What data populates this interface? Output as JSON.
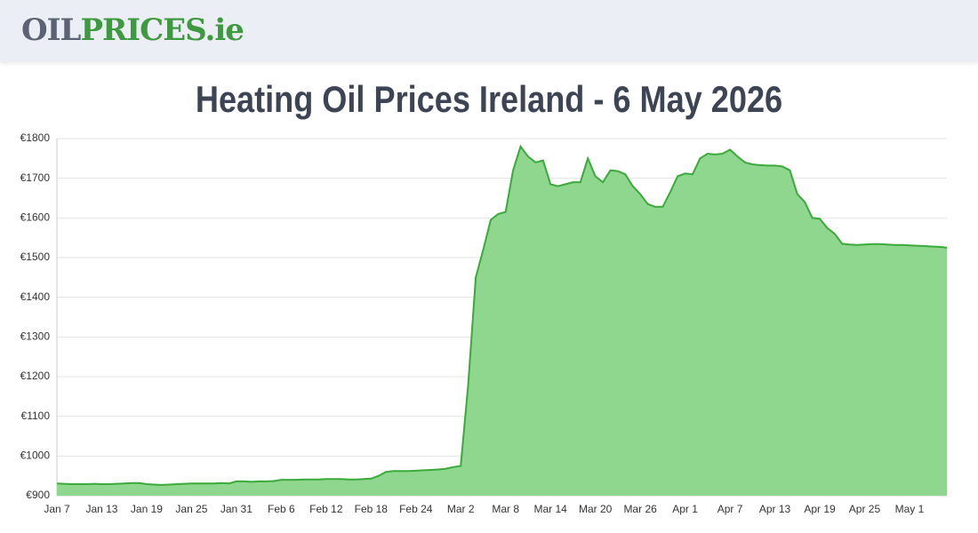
{
  "header": {
    "logo": [
      "OIL",
      "PRICES",
      ".ie"
    ]
  },
  "chart_data": {
    "type": "area",
    "title": "Heating Oil Prices Ireland - 6 May 2026",
    "categories": [
      "Jan 7",
      null,
      null,
      null,
      null,
      null,
      "Jan 13",
      null,
      null,
      null,
      null,
      null,
      "Jan 19",
      null,
      null,
      null,
      null,
      null,
      "Jan 25",
      null,
      null,
      null,
      null,
      null,
      "Jan 31",
      null,
      null,
      null,
      null,
      null,
      "Feb 6",
      null,
      null,
      null,
      null,
      null,
      "Feb 12",
      null,
      null,
      null,
      null,
      null,
      "Feb 18",
      null,
      null,
      null,
      null,
      null,
      "Feb 24",
      null,
      null,
      null,
      null,
      null,
      "Mar 2",
      null,
      null,
      null,
      null,
      null,
      "Mar 8",
      null,
      null,
      null,
      null,
      null,
      "Mar 14",
      null,
      null,
      null,
      null,
      null,
      "Mar 20",
      null,
      null,
      null,
      null,
      null,
      "Mar 26",
      null,
      null,
      null,
      null,
      null,
      "Apr 1",
      null,
      null,
      null,
      null,
      null,
      "Apr 7",
      null,
      null,
      null,
      null,
      null,
      "Apr 13",
      null,
      null,
      null,
      null,
      null,
      "Apr 19",
      null,
      null,
      null,
      null,
      null,
      "Apr 25",
      null,
      null,
      null,
      null,
      null,
      "May 1",
      null,
      null,
      null,
      null,
      null
    ],
    "values": [
      931,
      930,
      929,
      929,
      929,
      930,
      929,
      929,
      930,
      931,
      932,
      932,
      929,
      928,
      927,
      928,
      929,
      930,
      931,
      931,
      931,
      931,
      932,
      931,
      936,
      936,
      935,
      936,
      936,
      937,
      940,
      940,
      940,
      941,
      941,
      941,
      942,
      942,
      942,
      941,
      941,
      942,
      943,
      950,
      960,
      962,
      962,
      962,
      963,
      964,
      965,
      966,
      968,
      972,
      975,
      1180,
      1450,
      1520,
      1595,
      1610,
      1615,
      1720,
      1780,
      1755,
      1740,
      1745,
      1685,
      1680,
      1685,
      1690,
      1690,
      1750,
      1705,
      1690,
      1720,
      1718,
      1710,
      1680,
      1660,
      1635,
      1628,
      1628,
      1665,
      1705,
      1712,
      1710,
      1750,
      1762,
      1760,
      1762,
      1772,
      1755,
      1740,
      1735,
      1733,
      1732,
      1732,
      1730,
      1720,
      1660,
      1640,
      1600,
      1598,
      1575,
      1560,
      1535,
      1533,
      1532,
      1533,
      1534,
      1534,
      1533,
      1532,
      1532,
      1531,
      1530,
      1529,
      1528,
      1527,
      1525
    ],
    "color": "#3aaa3a",
    "fill": "#8fd68f",
    "ylim": [
      900,
      1800
    ],
    "yticks": [
      {
        "value": 900,
        "label": "€900"
      },
      {
        "value": 1000,
        "label": "€1000"
      },
      {
        "value": 1100,
        "label": "€1100"
      },
      {
        "value": 1200,
        "label": "€1200"
      },
      {
        "value": 1300,
        "label": "€1300"
      },
      {
        "value": 1400,
        "label": "€1400"
      },
      {
        "value": 1500,
        "label": "€1500"
      },
      {
        "value": 1600,
        "label": "€1600"
      },
      {
        "value": 1700,
        "label": "€1700"
      },
      {
        "value": 1800,
        "label": "€1800"
      }
    ],
    "grid": true
  }
}
